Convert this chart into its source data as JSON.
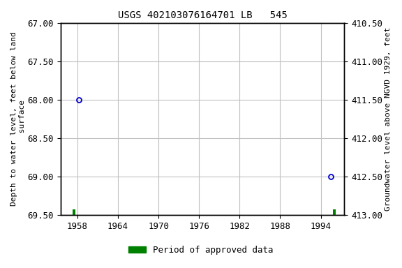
{
  "title": "USGS 402103076164701 LB   545",
  "ylabel_left": "Depth to water level, feet below land\n surface",
  "ylabel_right": "Groundwater level above NGVD 1929, feet",
  "xlim": [
    1955.5,
    1997.5
  ],
  "ylim_left": [
    67.0,
    69.5
  ],
  "ylim_right": [
    413.0,
    410.5
  ],
  "xticks": [
    1958,
    1964,
    1970,
    1976,
    1982,
    1988,
    1994
  ],
  "yticks_left": [
    67.0,
    67.5,
    68.0,
    68.5,
    69.0,
    69.5
  ],
  "yticks_right": [
    413.0,
    412.5,
    412.0,
    411.5,
    411.0,
    410.5
  ],
  "data_points_x": [
    1958.2,
    1995.5
  ],
  "data_points_y": [
    68.0,
    69.0
  ],
  "point_color": "#0000cd",
  "green_color": "#008000",
  "background_color": "#ffffff",
  "grid_color": "#c0c0c0",
  "legend_label": "Period of approved data",
  "title_fontsize": 10,
  "axis_label_fontsize": 8,
  "tick_fontsize": 9
}
